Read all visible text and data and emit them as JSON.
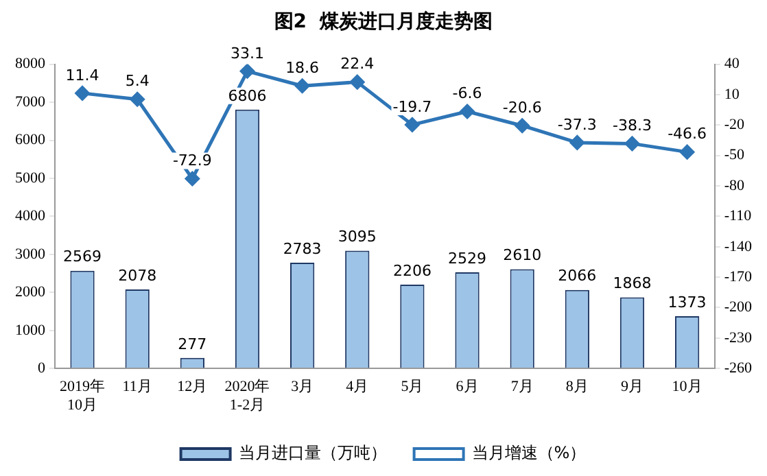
{
  "chart_data": {
    "type": "bar",
    "title": "图2  煤炭进口月度走势图",
    "categories": [
      "2019年\n10月",
      "11月",
      "12月",
      "2020年\n1-2月",
      "3月",
      "4月",
      "5月",
      "6月",
      "7月",
      "8月",
      "9月",
      "10月"
    ],
    "series": [
      {
        "name": "当月进口量（万吨）",
        "color": "#9dc3e6",
        "values": [
          2569,
          2078,
          277,
          6806,
          2783,
          3095,
          2206,
          2529,
          2610,
          2066,
          1868,
          1373
        ]
      },
      {
        "name": "当月增速（%）",
        "type": "line",
        "axis": "y2",
        "color": "#2e75b6",
        "values": [
          11.4,
          5.4,
          -72.9,
          33.1,
          18.6,
          22.4,
          -19.7,
          -6.6,
          -20.6,
          -37.3,
          -38.3,
          -46.6
        ]
      }
    ],
    "ylim": [
      0,
      8000
    ],
    "yticks": [
      0,
      1000,
      2000,
      3000,
      4000,
      5000,
      6000,
      7000,
      8000
    ],
    "y2lim": [
      -260,
      40
    ],
    "y2ticks": [
      -260,
      -230,
      -200,
      -170,
      -140,
      -110,
      -80,
      -50,
      -20,
      10,
      40
    ],
    "grid": false,
    "legend": "bottom",
    "marker": "diamond",
    "data_labels": true
  }
}
